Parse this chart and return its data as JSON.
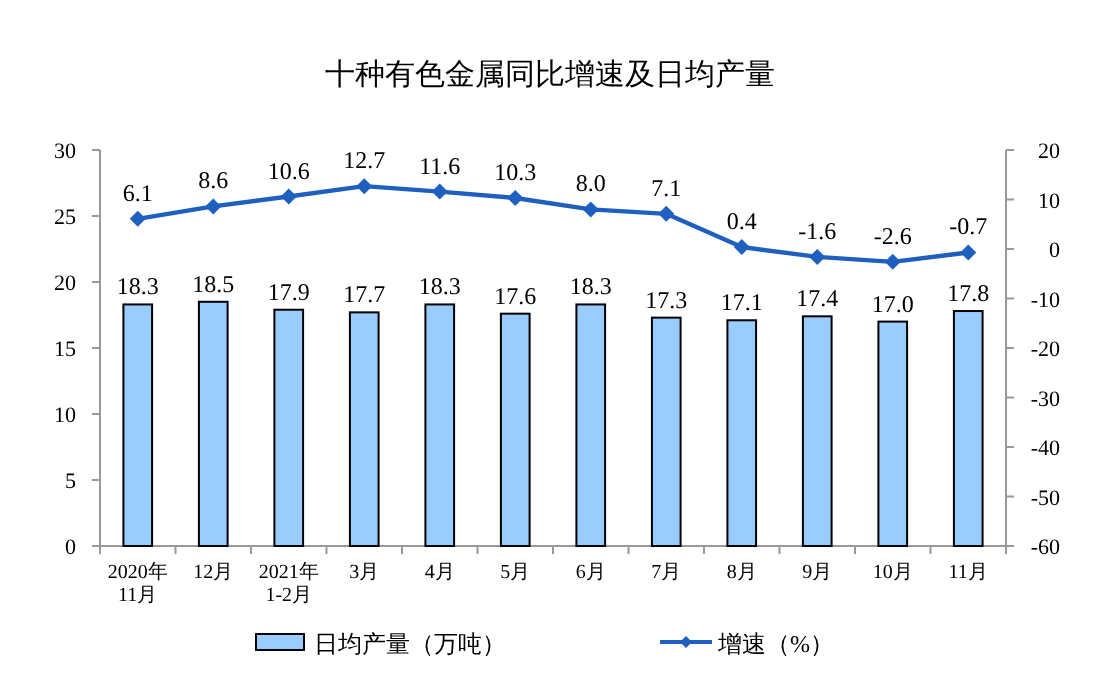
{
  "chart_data": {
    "type": "bar",
    "title": "十种有色金属同比增速及日均产量",
    "categories": [
      "2020年\n11月",
      "12月",
      "2021年\n1-2月",
      "3月",
      "4月",
      "5月",
      "6月",
      "7月",
      "8月",
      "9月",
      "10月",
      "11月"
    ],
    "series": [
      {
        "name": "日均产量（万吨）",
        "color": "#99ccff",
        "values": [
          18.3,
          18.5,
          17.9,
          17.7,
          18.3,
          17.6,
          18.3,
          17.3,
          17.1,
          17.4,
          17.0,
          17.8
        ],
        "value_labels": [
          "18.3",
          "18.5",
          "17.9",
          "17.7",
          "18.3",
          "17.6",
          "18.3",
          "17.3",
          "17.1",
          "17.4",
          "17.0",
          "17.8"
        ]
      },
      {
        "name": "增速（%）",
        "type": "line",
        "axis": "y2",
        "color": "#1f5fbf",
        "marker": "diamond",
        "values": [
          6.1,
          8.6,
          10.6,
          12.7,
          11.6,
          10.3,
          8.0,
          7.1,
          0.4,
          -1.6,
          -2.6,
          -0.7
        ],
        "value_labels": [
          "6.1",
          "8.6",
          "10.6",
          "12.7",
          "11.6",
          "10.3",
          "8.0",
          "7.1",
          "0.4",
          "-1.6",
          "-2.6",
          "-0.7"
        ]
      }
    ],
    "ylim": [
      0,
      30
    ],
    "yticks": [
      0,
      5,
      10,
      15,
      20,
      25,
      30
    ],
    "y2lim": [
      -60,
      20
    ],
    "y2ticks": [
      -60,
      -50,
      -40,
      -30,
      -20,
      -10,
      0,
      10,
      20
    ],
    "grid": false,
    "legend": "bottom"
  }
}
